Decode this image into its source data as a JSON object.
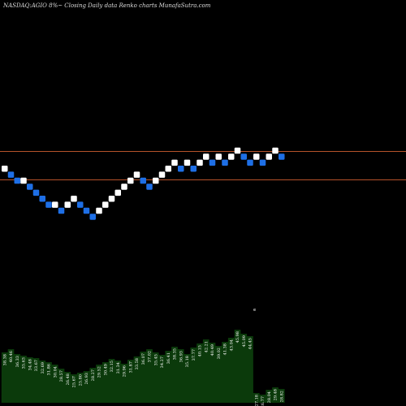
{
  "title": "NASDAQ:AGIO 8%~  Closing Daily data  Renko  charts MunafaSutra.com",
  "colors": {
    "background": "#000000",
    "up_brick": "#ffffff",
    "down_brick": "#1e6fe6",
    "level_line": "#b5522a",
    "volume_fill": "#0b3a0b",
    "volume_text": "#ffffff"
  },
  "chart_data": [
    {
      "type": "renko",
      "title": "NASDAQ:AGIO 8%~  Closing Daily data  Renko  charts MunafaSutra.com",
      "bricks": [
        "up",
        "down",
        "down",
        "up",
        "down",
        "down",
        "down",
        "down",
        "up",
        "down",
        "up",
        "up",
        "down",
        "down",
        "down",
        "up",
        "up",
        "up",
        "up",
        "up",
        "up",
        "up",
        "down",
        "down",
        "up",
        "up",
        "up",
        "up",
        "down",
        "up",
        "down",
        "up",
        "up",
        "down",
        "up",
        "down",
        "up",
        "up",
        "down",
        "down",
        "up",
        "down",
        "up",
        "up",
        "down"
      ],
      "brick_levels": [
        0,
        -1,
        -2,
        -2,
        -3,
        -4,
        -5,
        -6,
        -6,
        -7,
        -6,
        -5,
        -6,
        -7,
        -8,
        -7,
        -6,
        -5,
        -4,
        -3,
        -2,
        -1,
        -2,
        -3,
        -2,
        -1,
        0,
        1,
        0,
        1,
        0,
        1,
        2,
        1,
        2,
        1,
        2,
        3,
        2,
        1,
        2,
        1,
        2,
        3,
        2
      ],
      "horizontal_levels": [
        1,
        -3
      ],
      "volume": {
        "labels": [
          "38.38",
          "40.46",
          "36.33",
          "35.63",
          "34.48",
          "33.67",
          "32.69",
          "31.86",
          "30.04",
          "28.57",
          "26.48",
          "25.67",
          "25.80",
          "26.93",
          "28.27",
          "29.52",
          "30.49",
          "32.15",
          "31.34",
          "29.96",
          "31.87",
          "33.58",
          "36.07",
          "37.02",
          "35.45",
          "34.27",
          "36.41",
          "38.35",
          "36.93",
          "35.18",
          "37.77",
          "40.15",
          "42.21",
          "40.49",
          "39.02",
          "41.38",
          "43.04",
          "45.98",
          "45.09",
          "44.45",
          "27.18",
          "26.77",
          "28.04",
          "29.48",
          "28.82"
        ],
        "values": [
          62,
          66,
          60,
          58,
          56,
          55,
          52,
          50,
          47,
          42,
          38,
          35,
          37,
          39,
          43,
          47,
          50,
          54,
          52,
          48,
          53,
          57,
          63,
          66,
          62,
          59,
          64,
          69,
          66,
          60,
          68,
          73,
          78,
          74,
          70,
          75,
          80,
          90,
          85,
          82,
          12,
          10,
          16,
          19,
          17
        ]
      }
    }
  ]
}
